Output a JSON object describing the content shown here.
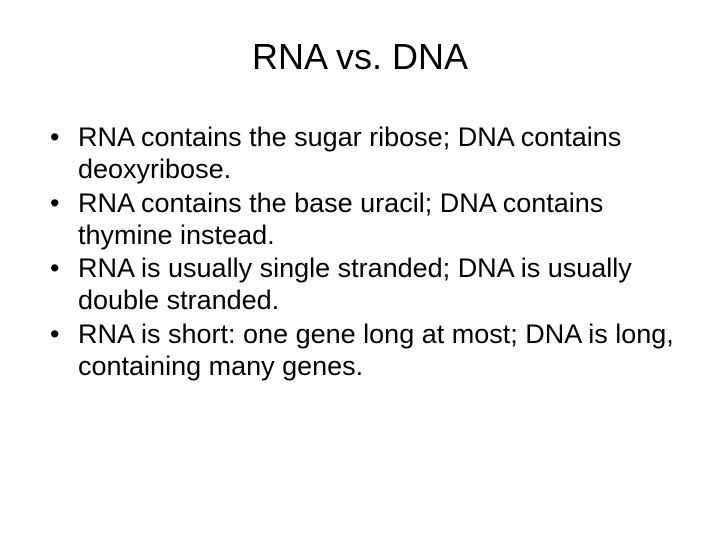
{
  "slide": {
    "title": "RNA vs. DNA",
    "title_fontsize": 36,
    "body_fontsize": 27,
    "background_color": "#ffffff",
    "text_color": "#000000",
    "font_family": "Arial",
    "bullets": [
      "RNA contains the sugar ribose; DNA contains deoxyribose.",
      "RNA contains the base uracil; DNA contains thymine instead.",
      "RNA is usually single stranded; DNA is usually double stranded.",
      "RNA is short: one gene long at most; DNA is long, containing many genes."
    ]
  }
}
